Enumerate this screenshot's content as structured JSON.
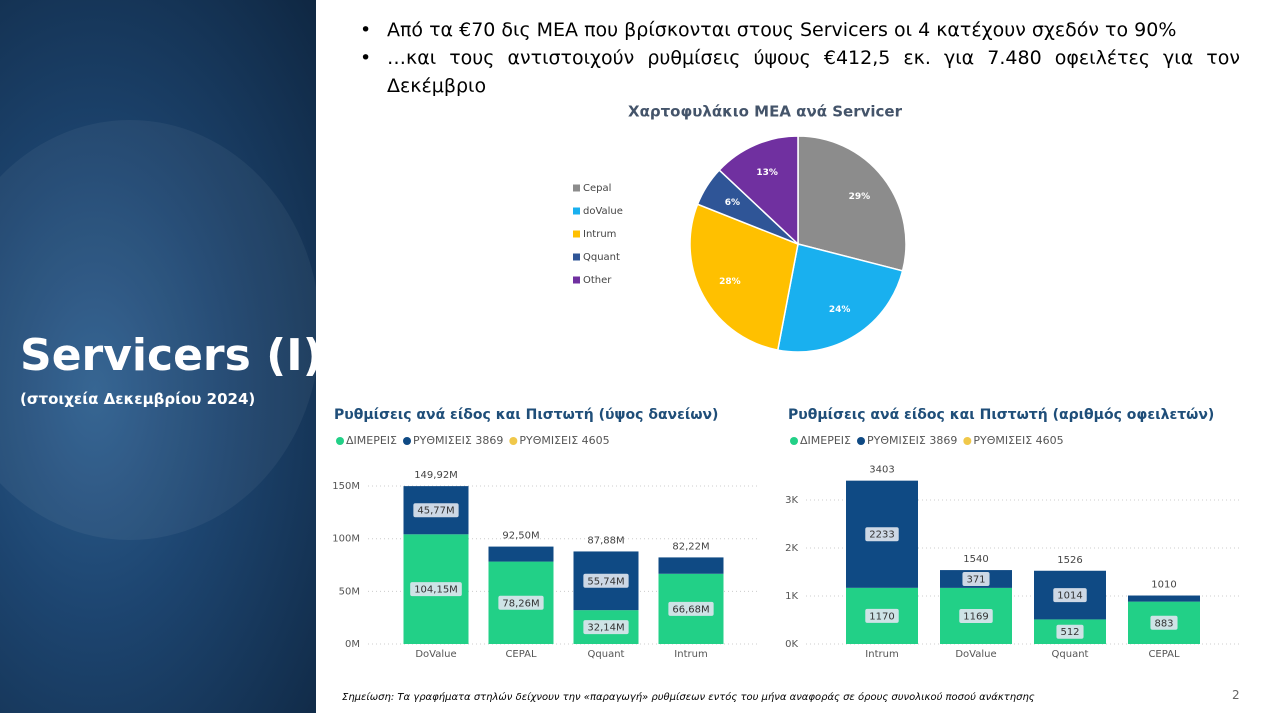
{
  "slide": {
    "title": "Servicers (I)",
    "subtitle": "(στοιχεία Δεκεμβρίου 2024)",
    "bullets": [
      "Από τα €70 δις ΜΕΑ που βρίσκονται στους Servicers οι 4 κατέχουν σχεδόν το 90%",
      "…και τους αντιστοιχούν ρυθμίσεις ύψους €412,5 εκ. για 7.480 οφειλέτες για τον Δεκέμβριο"
    ],
    "note": "Σημείωση: Τα γραφήματα στηλών δείχνουν την «παραγωγή» ρυθμίσεων εντός του μήνα αναφοράς σε όρους συνολικού ποσού ανάκτησης",
    "page_number": 2
  },
  "chart_data": [
    {
      "type": "pie",
      "title": "Χαρτοφυλάκιο ΜΕΑ ανά Servicer",
      "categories": [
        "Cepal",
        "doValue",
        "Intrum",
        "Qquant",
        "Other"
      ],
      "values": [
        29,
        24,
        28,
        6,
        13
      ],
      "value_labels": [
        "29%",
        "24%",
        "28%",
        "6%",
        "13%"
      ],
      "colors": [
        "#8c8c8c",
        "#19b0ef",
        "#ffc000",
        "#2f5597",
        "#7030a0"
      ]
    },
    {
      "type": "bar",
      "title": "Ρυθμίσεις ανά είδος και Πιστωτή (ύψος δανείων)",
      "categories": [
        "DoValue",
        "CEPAL",
        "Qquant",
        "Intrum"
      ],
      "series": [
        {
          "name": "ΔΙΜΕΡΕΙΣ",
          "color": "#22d087",
          "values": [
            104.15,
            78.26,
            32.14,
            66.68
          ],
          "value_labels": [
            "104,15M",
            "78,26M",
            "32,14M",
            "66,68M"
          ]
        },
        {
          "name": "ΡΥΘΜΙΣΕΙΣ 3869",
          "color": "#0f4a84",
          "values": [
            45.77,
            14.24,
            55.74,
            15.54
          ],
          "value_labels": [
            "45,77M",
            null,
            "55,74M",
            null
          ]
        },
        {
          "name": "ΡΥΘΜΙΣΕΙΣ 4605",
          "color": "#f0c84a",
          "values": [
            0,
            0,
            0,
            0
          ]
        }
      ],
      "totals": [
        149.92,
        92.5,
        87.88,
        82.22
      ],
      "total_labels": [
        "149,92M",
        "92,50M",
        "87,88M",
        "82,22M"
      ],
      "ylim": [
        0,
        160
      ],
      "yticks": [
        {
          "value": 0,
          "label": "0M"
        },
        {
          "value": 50,
          "label": "50M"
        },
        {
          "value": 100,
          "label": "100M"
        },
        {
          "value": 150,
          "label": "150M"
        }
      ],
      "grid": true
    },
    {
      "type": "bar",
      "title": "Ρυθμίσεις ανά είδος και Πιστωτή (αριθμός οφειλετών)",
      "categories": [
        "Intrum",
        "DoValue",
        "Qquant",
        "CEPAL"
      ],
      "series": [
        {
          "name": "ΔΙΜΕΡΕΙΣ",
          "color": "#22d087",
          "values": [
            1170,
            1169,
            512,
            883
          ],
          "value_labels": [
            "1170",
            "1169",
            "512",
            "883"
          ]
        },
        {
          "name": "ΡΥΘΜΙΣΕΙΣ 3869",
          "color": "#0f4a84",
          "values": [
            2233,
            371,
            1014,
            127
          ],
          "value_labels": [
            "2233",
            "371",
            "1014",
            null
          ]
        },
        {
          "name": "ΡΥΘΜΙΣΕΙΣ 4605",
          "color": "#f0c84a",
          "values": [
            0,
            0,
            0,
            0
          ]
        }
      ],
      "totals": [
        3403,
        1540,
        1526,
        1010
      ],
      "ylim": [
        0,
        3500
      ],
      "yticks": [
        {
          "value": 0,
          "label": "0K"
        },
        {
          "value": 1000,
          "label": "1K"
        },
        {
          "value": 2000,
          "label": "2K"
        },
        {
          "value": 3000,
          "label": "3K"
        }
      ],
      "grid": true
    }
  ]
}
